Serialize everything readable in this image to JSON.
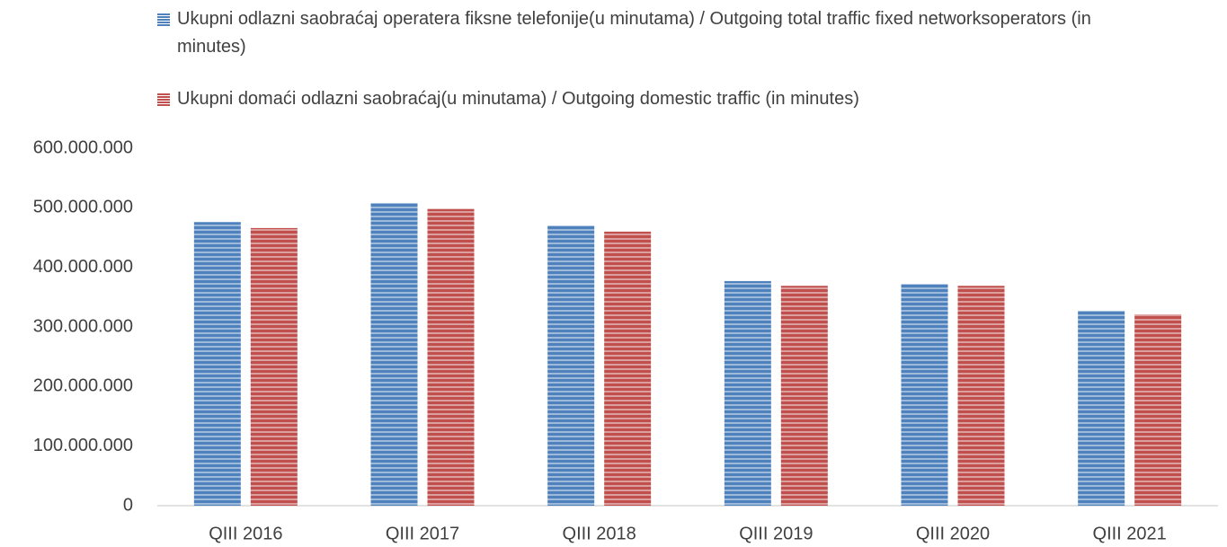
{
  "chart_data": {
    "type": "bar",
    "categories": [
      "QIII 2016",
      "QIII 2017",
      "QIII 2018",
      "QIII 2019",
      "QIII 2020",
      "QIII 2021"
    ],
    "series": [
      {
        "name": "Ukupni odlazni saobraćaj operatera fiksne telefonije(u minutama) / Outgoing total traffic fixed networksoperators (in minutes)",
        "color": "#4f81bd",
        "values": [
          476000000,
          508000000,
          470000000,
          377000000,
          372000000,
          327000000
        ]
      },
      {
        "name": "Ukupni domaći odlazni saobraćaj(u minutama) / Outgoing domestic traffic  (in minutes)",
        "color": "#c0504d",
        "values": [
          466000000,
          498000000,
          460000000,
          369000000,
          369000000,
          321000000
        ]
      }
    ],
    "ylim": [
      0,
      600000000
    ],
    "yticks": [
      0,
      {
        "value": 100000000,
        "label": "100.000.000"
      },
      {
        "value": 200000000,
        "label": "200.000.000"
      },
      {
        "value": 300000000,
        "label": "300.000.000"
      },
      {
        "value": 400000000,
        "label": "400.000.000"
      },
      {
        "value": 500000000,
        "label": "500.000.000"
      },
      {
        "value": 600000000,
        "label": "600.000.000"
      }
    ],
    "grid": false
  }
}
